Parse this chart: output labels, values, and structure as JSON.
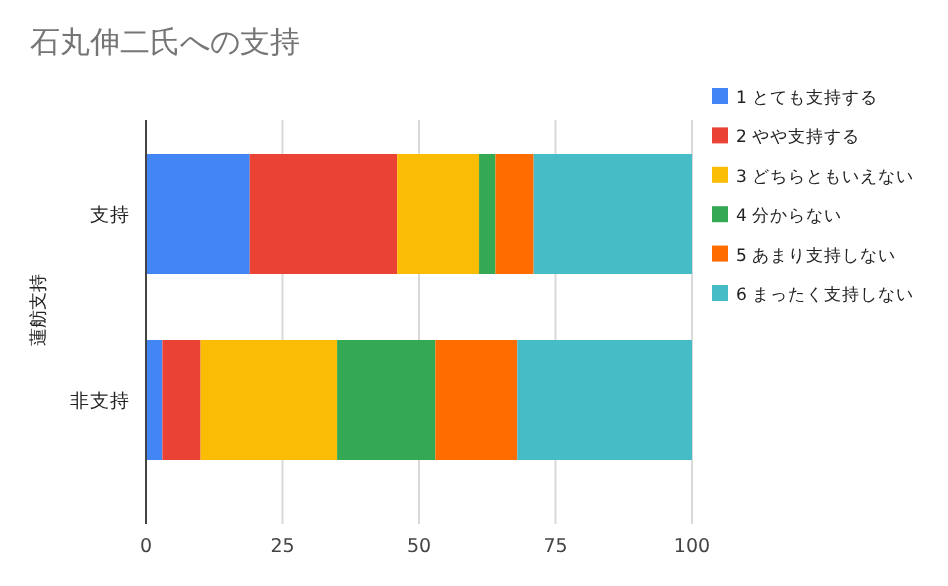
{
  "chart_data": {
    "type": "bar",
    "orientation": "horizontal",
    "stacked": true,
    "title": "石丸伸二氏への支持",
    "ylabel": "蓮舫支持",
    "categories": [
      "支持",
      "非支持"
    ],
    "series": [
      {
        "name": "1 とても支持する",
        "color": "#4285f4",
        "values": [
          19,
          3
        ]
      },
      {
        "name": "2 やや支持する",
        "color": "#ea4335",
        "values": [
          27,
          7
        ]
      },
      {
        "name": "3 どちらともいえない",
        "color": "#fbbc04",
        "values": [
          15,
          25
        ]
      },
      {
        "name": "4 分からない",
        "color": "#34a853",
        "values": [
          3,
          18
        ]
      },
      {
        "name": "5 あまり支持しない",
        "color": "#ff6d01",
        "values": [
          7,
          15
        ]
      },
      {
        "name": "6 まったく支持しない",
        "color": "#46bdc6",
        "values": [
          29,
          32
        ]
      }
    ],
    "xlim": [
      0,
      100
    ],
    "xticks": [
      0,
      25,
      50,
      75,
      100
    ],
    "grid": "x",
    "legend": "right"
  }
}
